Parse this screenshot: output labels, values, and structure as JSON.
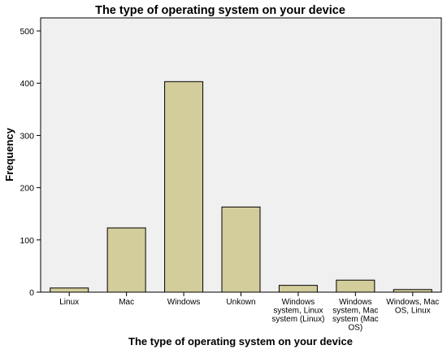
{
  "chart_data": {
    "type": "bar",
    "title": "The type of operating system on your device",
    "xlabel": "The type of operating system on your device",
    "ylabel": "Frequency",
    "categories": [
      "Linux",
      "Mac",
      "Windows",
      "Unkown",
      "Windows system, Linux system (Linux)",
      "Windows system, Mac system (Mac OS)",
      "Windows, Mac OS, Linux"
    ],
    "category_lines": [
      [
        "Linux"
      ],
      [
        "Mac"
      ],
      [
        "Windows"
      ],
      [
        "Unkown"
      ],
      [
        "Windows",
        "system, Linux",
        "system (Linux)"
      ],
      [
        "Windows",
        "system, Mac",
        "system (Mac",
        "OS)"
      ],
      [
        "Windows, Mac",
        "OS, Linux"
      ]
    ],
    "values": [
      8,
      123,
      403,
      163,
      13,
      23,
      5
    ],
    "ylim": [
      0,
      525
    ],
    "yticks": [
      0,
      100,
      200,
      300,
      400,
      500
    ],
    "grid": false,
    "legend": "none",
    "colors": {
      "bar_fill": "#d3cd9b",
      "bar_stroke": "#000000",
      "plot_background": "#f0f0f0",
      "axis": "#000000"
    }
  }
}
